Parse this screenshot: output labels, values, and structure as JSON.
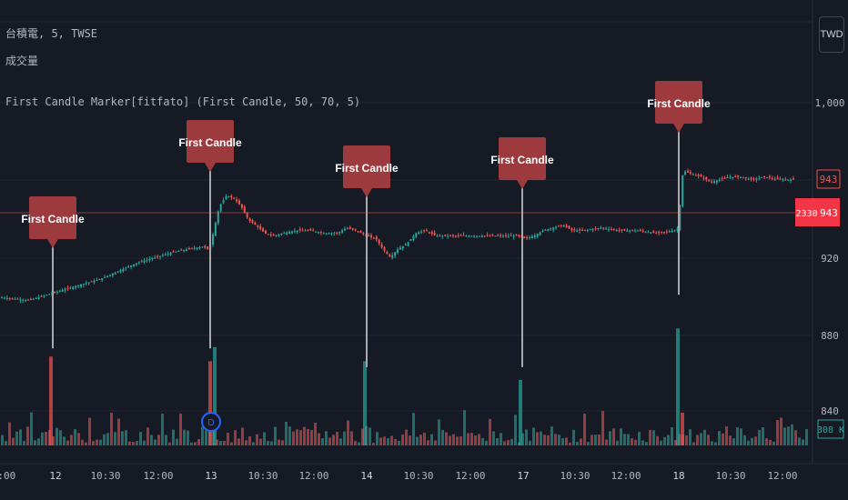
{
  "legend": {
    "symbol": "台積電, 5, TWSE",
    "volume": "成交量",
    "indicator": "First Candle Marker[fitfato] (First Candle, 50, 70, 5)"
  },
  "currency": "TWD",
  "marker_label": "First Candle",
  "price_tag": {
    "symbol": "2330",
    "value": "943",
    "upper_value": "943"
  },
  "volume_tag": "308 K",
  "colors": {
    "up": "#26a69a",
    "down": "#ef5350",
    "marker": "#9c3a3e",
    "background": "#161a25"
  },
  "chart_data": {
    "type": "candlestick",
    "series": [
      {
        "name": "台積電",
        "type": "price"
      },
      {
        "name": "成交量",
        "type": "volume"
      }
    ],
    "y_axis": {
      "ticks": [
        "1,000",
        "920",
        "880",
        "840"
      ],
      "range": [
        837,
        1010
      ]
    },
    "x_axis": {
      "ticks": [
        "2:00",
        "12",
        "10:30",
        "12:00",
        "13",
        "10:30",
        "12:00",
        "14",
        "10:30",
        "12:00",
        "17",
        "10:30",
        "12:00",
        "18",
        "10:30",
        "12:00"
      ]
    },
    "close_path": [
      [
        1,
        899
      ],
      [
        28,
        898
      ],
      [
        31,
        898
      ],
      [
        60,
        901
      ],
      [
        70,
        902
      ],
      [
        90,
        904
      ],
      [
        110,
        906
      ],
      [
        130,
        909
      ],
      [
        150,
        912
      ],
      [
        170,
        914
      ],
      [
        190,
        916
      ],
      [
        205,
        917
      ],
      [
        222,
        918
      ],
      [
        228,
        917
      ],
      [
        232,
        921
      ],
      [
        240,
        933
      ],
      [
        248,
        937
      ],
      [
        256,
        936
      ],
      [
        264,
        933
      ],
      [
        272,
        928
      ],
      [
        280,
        926
      ],
      [
        290,
        923
      ],
      [
        300,
        922
      ],
      [
        310,
        923
      ],
      [
        325,
        924
      ],
      [
        340,
        924
      ],
      [
        355,
        923
      ],
      [
        370,
        923
      ],
      [
        380,
        925
      ],
      [
        390,
        924
      ],
      [
        402,
        922
      ],
      [
        412,
        921
      ],
      [
        420,
        917
      ],
      [
        428,
        914
      ],
      [
        436,
        917
      ],
      [
        446,
        919
      ],
      [
        456,
        923
      ],
      [
        466,
        924
      ],
      [
        478,
        922
      ],
      [
        490,
        922
      ],
      [
        510,
        922
      ],
      [
        530,
        922
      ],
      [
        550,
        922
      ],
      [
        560,
        922
      ],
      [
        568,
        922
      ],
      [
        576,
        921
      ],
      [
        586,
        922
      ],
      [
        596,
        924
      ],
      [
        606,
        925
      ],
      [
        618,
        926
      ],
      [
        628,
        924
      ],
      [
        640,
        924
      ],
      [
        660,
        925
      ],
      [
        680,
        924
      ],
      [
        700,
        924
      ],
      [
        720,
        923
      ],
      [
        740,
        924
      ],
      [
        745,
        925
      ],
      [
        748,
        944
      ],
      [
        752,
        946
      ],
      [
        760,
        945
      ],
      [
        770,
        944
      ],
      [
        780,
        942
      ],
      [
        790,
        943
      ],
      [
        800,
        944
      ],
      [
        812,
        944
      ],
      [
        825,
        943
      ],
      [
        840,
        944
      ],
      [
        855,
        943
      ],
      [
        870,
        943
      ]
    ],
    "volume_spikes": [
      {
        "day": "12",
        "value_k": 950,
        "dir": "down"
      },
      {
        "day": "13",
        "value_k": 900,
        "dir": "down"
      },
      {
        "day": "13",
        "value_k": 1050,
        "dir": "up"
      },
      {
        "day": "14",
        "value_k": 900,
        "dir": "up"
      },
      {
        "day": "17",
        "value_k": 700,
        "dir": "up"
      },
      {
        "day": "18",
        "value_k": 1250,
        "dir": "up"
      },
      {
        "day": "18",
        "value_k": 350,
        "dir": "down"
      }
    ],
    "markers": [
      {
        "label": "First Candle",
        "day": "12",
        "line_bottom_price": 880
      },
      {
        "label": "First Candle",
        "day": "13",
        "line_bottom_price": 880
      },
      {
        "label": "First Candle",
        "day": "14",
        "line_bottom_price": 873
      },
      {
        "label": "First Candle",
        "day": "17",
        "line_bottom_price": 873
      },
      {
        "label": "First Candle",
        "day": "18",
        "line_bottom_price": 900
      }
    ],
    "last_price": 943,
    "last_volume": "308 K",
    "event_icon": "D"
  }
}
